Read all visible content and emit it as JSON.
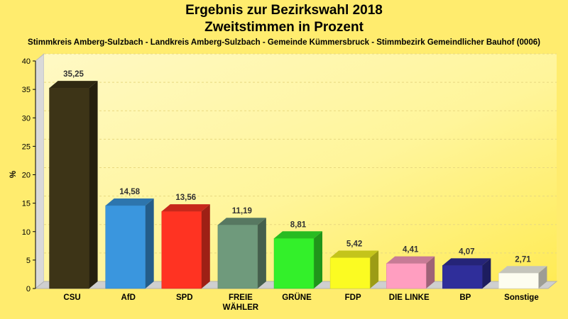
{
  "header": {
    "title_line1": "Ergebnis zur Bezirkswahl 2018",
    "title_line2": "Zweitstimmen in Prozent",
    "subtitle": "Stimmkreis Amberg-Sulzbach - Landkreis Amberg-Sulzbach - Gemeinde Kümmersbruck - Stimmbezirk Gemeindlicher Bauhof (0006)"
  },
  "chart_data": {
    "type": "bar",
    "title": "Ergebnis zur Bezirkswahl 2018 / Zweitstimmen in Prozent",
    "ylabel": "%",
    "xlabel": "",
    "ylim": [
      0,
      40
    ],
    "yticks": [
      0,
      5,
      10,
      15,
      20,
      25,
      30,
      35,
      40
    ],
    "grid": true,
    "categories": [
      "CSU",
      "AfD",
      "SPD",
      "FREIE WÄHLER",
      "GRÜNE",
      "FDP",
      "DIE LINKE",
      "BP",
      "Sonstige"
    ],
    "category_lines": [
      [
        "CSU"
      ],
      [
        "AfD"
      ],
      [
        "SPD"
      ],
      [
        "FREIE",
        "WÄHLER"
      ],
      [
        "GRÜNE"
      ],
      [
        "FDP"
      ],
      [
        "DIE LINKE"
      ],
      [
        "BP"
      ],
      [
        "Sonstige"
      ]
    ],
    "values": [
      35.25,
      14.58,
      13.56,
      11.19,
      8.81,
      5.42,
      4.41,
      4.07,
      2.71
    ],
    "value_labels": [
      "35,25",
      "14,58",
      "13,56",
      "11,19",
      "8,81",
      "5,42",
      "4,41",
      "4,07",
      "2,71"
    ],
    "colors": [
      "#3d3417",
      "#3a96de",
      "#ff3322",
      "#6f9a7c",
      "#33f02a",
      "#fbfb22",
      "#ff9ec0",
      "#2f2e9a",
      "#fdfdf0"
    ]
  }
}
